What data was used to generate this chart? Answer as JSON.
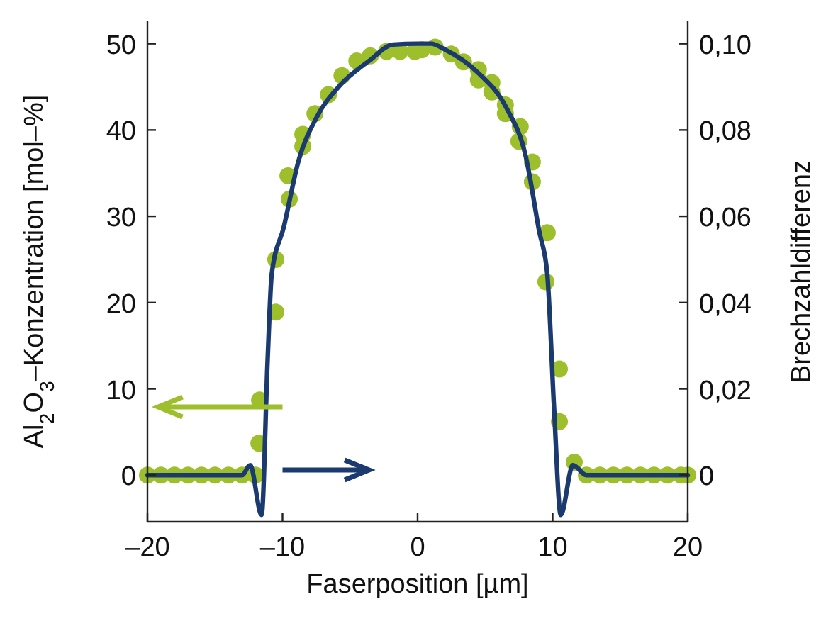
{
  "chart_data": {
    "type": "line",
    "xlabel": "Faserposition [µm]",
    "ylabel": "Al$_{2}$O$_{3}$–Konzentration [mol–%]",
    "y2label": "Brechzahldifferenz",
    "xlim": [
      -20,
      20
    ],
    "xticks": [
      {
        "value": -20,
        "label": "–20"
      },
      {
        "value": -10,
        "label": "–10"
      },
      0,
      10,
      20
    ],
    "ylim": [
      -5.4,
      52.6
    ],
    "yticks": [
      0,
      10,
      20,
      30,
      40,
      50
    ],
    "y2lim": [
      -0.0108,
      0.1052
    ],
    "y2ticks": [
      0,
      {
        "value": 0.02,
        "label": "0,02"
      },
      {
        "value": 0.04,
        "label": "0,04"
      },
      {
        "value": 0.06,
        "label": "0,06"
      },
      {
        "value": 0.08,
        "label": "0,08"
      },
      {
        "value": 0.1,
        "label": "0,10"
      }
    ],
    "grid": false,
    "series": [
      {
        "type": "scatter",
        "color": "#9dbf2c",
        "marker": "circle",
        "x": [
          -20,
          -19,
          -18,
          -17,
          -16,
          -15,
          -14,
          -13,
          -12,
          -11.75,
          -11.7,
          -10.5,
          -10.5,
          -9.5,
          -9.6,
          -8.5,
          -8.5,
          -7.6,
          -6.6,
          -5.6,
          -4.5,
          -3.5,
          -2.3,
          -1.3,
          -0.2,
          0.3,
          1.3,
          2.5,
          3.4,
          4.5,
          4.5,
          5.5,
          5.5,
          6.5,
          6.5,
          7.6,
          7.5,
          8.5,
          8.5,
          9.6,
          9.5,
          10.5,
          10.5,
          11.6,
          12.5,
          13.5,
          14.5,
          15.5,
          16.5,
          17.5,
          18.5,
          19.5,
          20
        ],
        "values": [
          0,
          0,
          0,
          0,
          0,
          0,
          0,
          0,
          0,
          3.7,
          8.7,
          18.9,
          25,
          32,
          34.7,
          38.1,
          39.5,
          41.9,
          44.1,
          46.3,
          48,
          48.6,
          49.1,
          49.1,
          49.1,
          49.3,
          49.6,
          48.8,
          47.9,
          47,
          45.8,
          45.5,
          44.4,
          42.9,
          41.9,
          40.4,
          38.7,
          36.3,
          34,
          28.1,
          22.4,
          12.3,
          6.2,
          1.5,
          0,
          0,
          0,
          0,
          0,
          0,
          0,
          0,
          0
        ]
      },
      {
        "color": "#1a3a70",
        "axis": "y2",
        "marker": "none",
        "line_style": "solid",
        "x": [
          -20,
          -13,
          -12.4,
          -11.55,
          -11.1,
          -10.8,
          -9.9,
          -8.8,
          -7.5,
          -5.7,
          -3.6,
          -1.8,
          0,
          1,
          2,
          4.5,
          6.6,
          8,
          9,
          9.6,
          10.1,
          10.6,
          11.5,
          12.5,
          20
        ],
        "values": [
          0,
          0,
          0.0023,
          -0.0092,
          0.027,
          0.0466,
          0.0576,
          0.073,
          0.0828,
          0.0905,
          0.096,
          0.0998,
          0.1,
          0.1,
          0.0987,
          0.0932,
          0.085,
          0.074,
          0.0566,
          0.0467,
          0.0158,
          -0.0092,
          0.0023,
          0,
          0
        ]
      }
    ]
  }
}
